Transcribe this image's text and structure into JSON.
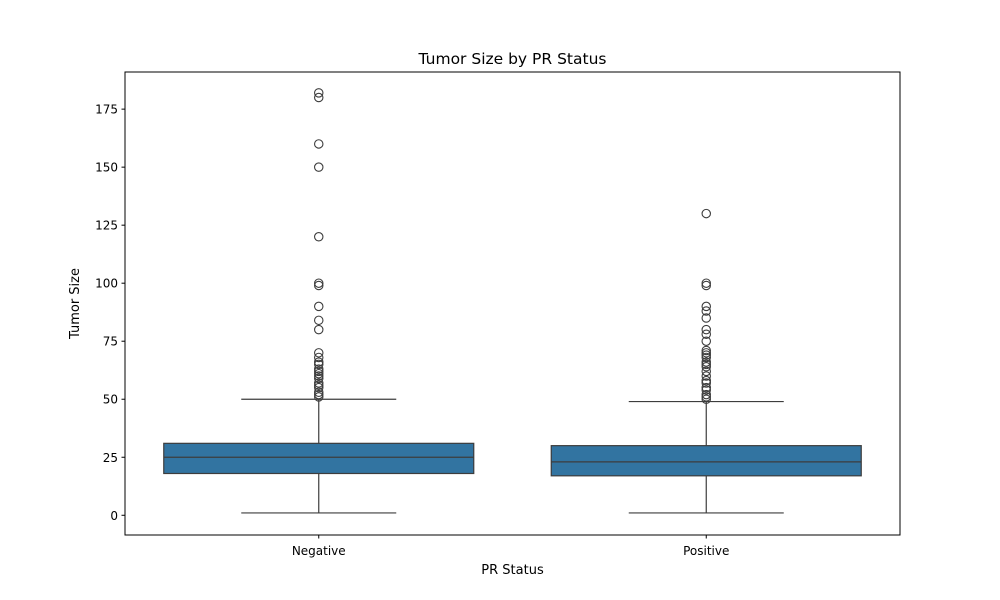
{
  "chart_data": {
    "type": "box",
    "title": "Tumor Size by PR Status",
    "xlabel": "PR Status",
    "ylabel": "Tumor Size",
    "ylim": [
      -8.5,
      191
    ],
    "yticks": [
      0,
      25,
      50,
      75,
      100,
      125,
      150,
      175
    ],
    "categories": [
      "Negative",
      "Positive"
    ],
    "grid": false,
    "box_color": "#3274a1",
    "line_color": "#3d3d3d",
    "boxes": [
      {
        "category": "Negative",
        "whisker_low": 1,
        "q1": 18,
        "median": 25,
        "q3": 31,
        "whisker_high": 50,
        "outliers": [
          51,
          52,
          53,
          55,
          56,
          57,
          59,
          60,
          61,
          62,
          63,
          65,
          66,
          68,
          70,
          80,
          84,
          90,
          99,
          100,
          120,
          150,
          160,
          180,
          182
        ]
      },
      {
        "category": "Positive",
        "whisker_low": 1,
        "q1": 17,
        "median": 23,
        "q3": 30,
        "whisker_high": 49,
        "outliers": [
          50,
          51,
          52,
          54,
          55,
          57,
          58,
          60,
          62,
          64,
          65,
          66,
          68,
          69,
          70,
          71,
          75,
          78,
          80,
          85,
          88,
          90,
          99,
          100,
          130
        ]
      }
    ]
  }
}
